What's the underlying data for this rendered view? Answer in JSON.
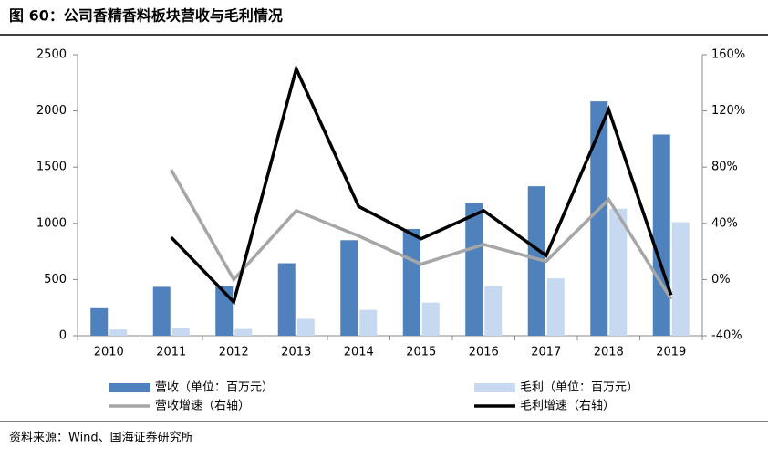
{
  "chart_data": {
    "type": "bar",
    "title": "图 60：公司香精香料板块营收与毛利情况",
    "source": "资料来源：Wind、国海证券研究所",
    "categories": [
      "2010",
      "2011",
      "2012",
      "2013",
      "2014",
      "2015",
      "2016",
      "2017",
      "2018",
      "2019"
    ],
    "series": [
      {
        "name": "营收（单位：百万元）",
        "type": "bar",
        "color": "#4f81bd",
        "values": [
          245,
          435,
          440,
          645,
          850,
          950,
          1180,
          1330,
          2085,
          1790
        ]
      },
      {
        "name": "毛利（单位：百万元）",
        "type": "bar",
        "color": "#c6d9f1",
        "values": [
          55,
          70,
          60,
          150,
          230,
          295,
          440,
          510,
          1130,
          1010
        ]
      },
      {
        "name": "营收增速（右轴）",
        "type": "line",
        "axis": "y2",
        "color": "#a6a6a6",
        "values": [
          null,
          78,
          0,
          49,
          31,
          11,
          25,
          13,
          57,
          -14
        ]
      },
      {
        "name": "毛利增速（右轴）",
        "type": "line",
        "axis": "y2",
        "color": "#000000",
        "values": [
          null,
          30,
          -16,
          150,
          52,
          29,
          49,
          17,
          121,
          -11
        ]
      }
    ],
    "ylim": [
      0,
      2500
    ],
    "yticks": [
      0,
      500,
      1000,
      1500,
      2000,
      2500
    ],
    "y2lim": [
      -40,
      160
    ],
    "y2ticks": [
      {
        "value": -40,
        "label": "-40%"
      },
      {
        "value": 0,
        "label": "0%"
      },
      {
        "value": 40,
        "label": "40%"
      },
      {
        "value": 80,
        "label": "80%"
      },
      {
        "value": 120,
        "label": "120%"
      },
      {
        "value": 160,
        "label": "160%"
      }
    ]
  }
}
